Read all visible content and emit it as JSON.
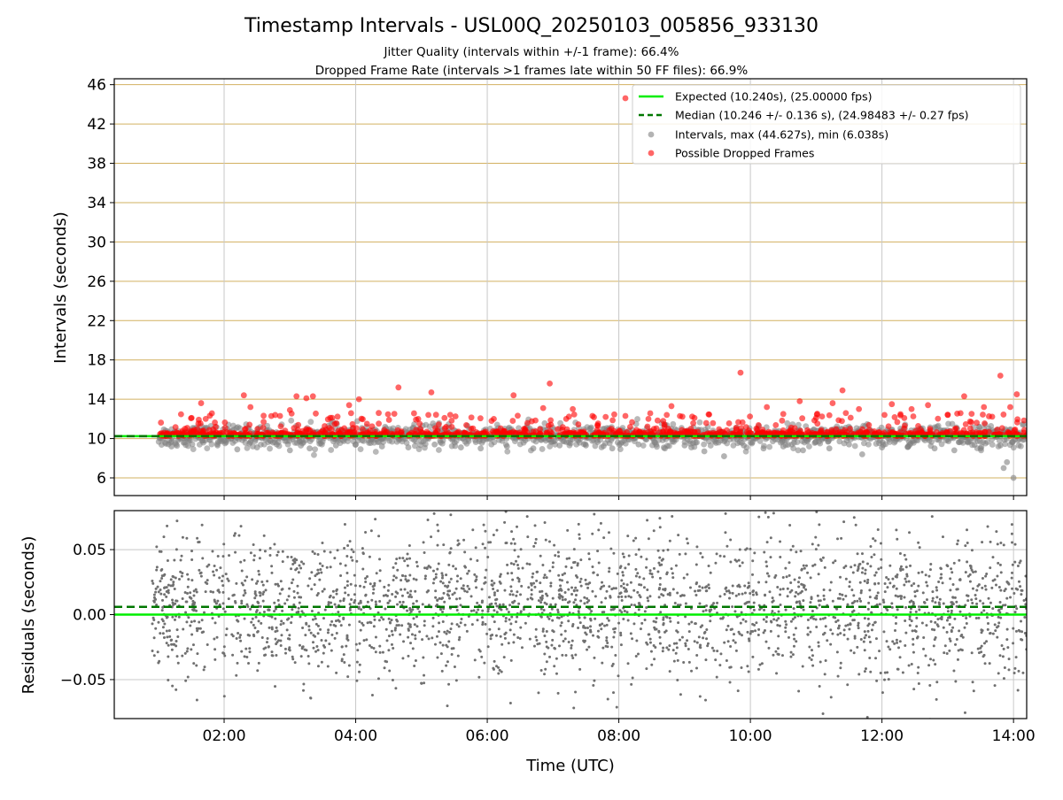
{
  "chart_data": [
    {
      "type": "scatter",
      "title": "Timestamp Intervals - USL00Q_20250103_005856_933130",
      "subtitle_lines": [
        "Jitter Quality (intervals within +/-1 frame): 66.4%",
        "Dropped Frame Rate (intervals >1 frames late within 50 FF files): 66.9%"
      ],
      "ylabel": "Intervals (seconds)",
      "xlabel": "",
      "x_units": "hours UTC",
      "xlim": [
        0.33,
        14.2
      ],
      "ylim": [
        4.2,
        46.6
      ],
      "yticks": [
        6,
        10,
        14,
        18,
        22,
        26,
        30,
        34,
        38,
        42,
        46
      ],
      "xticks": [
        "02:00",
        "04:00",
        "06:00",
        "08:00",
        "10:00",
        "12:00",
        "14:00"
      ],
      "xtick_values": [
        2,
        4,
        6,
        8,
        10,
        12,
        14
      ],
      "grid": true,
      "legend_position": "upper-right",
      "legend": [
        "Expected (10.240s), (25.00000 fps)",
        "Median (10.246 +/- 0.136 s), (24.98483 +/- 0.27 fps)",
        "Intervals, max (44.627s), min (6.038s)",
        "Possible Dropped Frames"
      ],
      "expected_interval": 10.24,
      "median_interval": 10.246,
      "interval_max": 44.627,
      "interval_min": 6.038,
      "x_range": [
        1.0,
        14.2
      ],
      "series": [
        {
          "name": "Intervals, max (44.627s), min (6.038s)",
          "color": "#808080",
          "description_points_note": "",
          "points": [
            [
              1.2,
              9.2
            ],
            [
              1.4,
              9.6
            ],
            [
              1.6,
              10.9
            ],
            [
              1.9,
              9.3
            ],
            [
              2.2,
              8.9
            ],
            [
              2.5,
              9.1
            ],
            [
              2.8,
              9.4
            ],
            [
              3.0,
              8.8
            ],
            [
              3.3,
              9.0
            ],
            [
              3.7,
              9.3
            ],
            [
              4.0,
              9.4
            ],
            [
              4.4,
              9.2
            ],
            [
              4.8,
              9.1
            ],
            [
              5.2,
              9.4
            ],
            [
              5.6,
              9.1
            ],
            [
              5.9,
              9.0
            ],
            [
              6.3,
              9.2
            ],
            [
              6.7,
              9.0
            ],
            [
              7.1,
              9.3
            ],
            [
              7.5,
              9.3
            ],
            [
              7.9,
              9.0
            ],
            [
              8.3,
              9.4
            ],
            [
              8.7,
              9.0
            ],
            [
              9.0,
              9.3
            ],
            [
              9.3,
              8.7
            ],
            [
              9.6,
              8.2
            ],
            [
              9.9,
              9.3
            ],
            [
              10.2,
              9.0
            ],
            [
              10.5,
              9.2
            ],
            [
              10.8,
              8.8
            ],
            [
              11.2,
              9.0
            ],
            [
              11.5,
              9.4
            ],
            [
              11.7,
              8.4
            ],
            [
              12.0,
              9.1
            ],
            [
              12.4,
              9.2
            ],
            [
              12.8,
              9.0
            ],
            [
              13.1,
              8.8
            ],
            [
              13.5,
              9.0
            ],
            [
              13.8,
              9.3
            ],
            [
              13.85,
              7.0
            ],
            [
              13.9,
              7.6
            ],
            [
              14.0,
              6.0
            ]
          ]
        },
        {
          "name": "Possible Dropped Frames",
          "color": "#ff0000",
          "points": [
            [
              1.65,
              13.6
            ],
            [
              1.72,
              12.0
            ],
            [
              2.3,
              14.4
            ],
            [
              2.4,
              13.2
            ],
            [
              2.6,
              11.7
            ],
            [
              2.85,
              12.3
            ],
            [
              3.0,
              12.9
            ],
            [
              3.1,
              14.3
            ],
            [
              3.25,
              14.1
            ],
            [
              3.35,
              14.3
            ],
            [
              3.9,
              13.4
            ],
            [
              4.05,
              14.0
            ],
            [
              4.35,
              12.6
            ],
            [
              4.65,
              15.2
            ],
            [
              4.95,
              12.0
            ],
            [
              5.15,
              14.7
            ],
            [
              5.35,
              12.1
            ],
            [
              6.1,
              12.0
            ],
            [
              6.4,
              14.4
            ],
            [
              6.85,
              13.1
            ],
            [
              6.95,
              15.6
            ],
            [
              7.2,
              12.0
            ],
            [
              7.3,
              13.0
            ],
            [
              7.8,
              12.2
            ],
            [
              8.1,
              12.3
            ],
            [
              8.45,
              12.0
            ],
            [
              8.8,
              13.3
            ],
            [
              9.15,
              12.1
            ],
            [
              9.85,
              16.7
            ],
            [
              10.25,
              13.2
            ],
            [
              10.5,
              12.5
            ],
            [
              10.75,
              13.8
            ],
            [
              11.0,
              12.1
            ],
            [
              11.25,
              13.6
            ],
            [
              11.4,
              14.9
            ],
            [
              11.65,
              13.0
            ],
            [
              12.15,
              13.5
            ],
            [
              12.45,
              13.0
            ],
            [
              12.7,
              13.4
            ],
            [
              13.0,
              12.4
            ],
            [
              13.25,
              14.3
            ],
            [
              13.55,
              13.2
            ],
            [
              13.8,
              16.4
            ],
            [
              13.95,
              13.2
            ],
            [
              14.05,
              14.5
            ]
          ]
        }
      ],
      "legend_stray_marker": true,
      "colors": {
        "expected": "#00ee00",
        "median": "#007700",
        "intervals": "#808080",
        "dropped": "#ff0000",
        "hgrid": "#d2b060",
        "vgrid": "#c8c8c8"
      }
    },
    {
      "type": "scatter",
      "ylabel": "Residuals (seconds)",
      "xlabel": "Time (UTC)",
      "xlim": [
        0.33,
        14.2
      ],
      "ylim": [
        -0.08,
        0.08
      ],
      "yticks": [
        -0.05,
        0.0,
        0.05
      ],
      "ytick_labels": [
        "−0.05",
        "0.00",
        "0.05"
      ],
      "xticks": [
        "02:00",
        "04:00",
        "06:00",
        "08:00",
        "10:00",
        "12:00",
        "14:00"
      ],
      "xtick_values": [
        2,
        4,
        6,
        8,
        10,
        12,
        14
      ],
      "grid": true,
      "expected_residual": 0.0,
      "median_residual": 0.006,
      "residual_std": 0.028,
      "x_range": [
        0.9,
        14.2
      ],
      "series": [
        {
          "name": "",
          "color": "#707070"
        }
      ]
    }
  ]
}
